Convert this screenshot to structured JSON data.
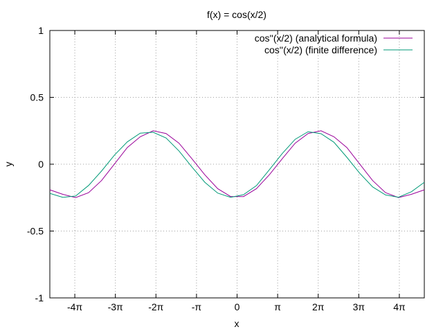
{
  "chart_data": {
    "type": "line",
    "title": "f(x) = cos(x/2)",
    "xlabel": "x",
    "ylabel": "y",
    "xlim": [
      -14.5,
      14.5
    ],
    "ylim": [
      -1,
      1
    ],
    "grid": true,
    "legend_position": "top-right",
    "x_ticks": [
      {
        "value": -12.566,
        "label": "-4π"
      },
      {
        "value": -9.425,
        "label": "-3π"
      },
      {
        "value": -6.283,
        "label": "-2π"
      },
      {
        "value": -3.142,
        "label": "-π"
      },
      {
        "value": 0,
        "label": "0"
      },
      {
        "value": 3.142,
        "label": "π"
      },
      {
        "value": 6.283,
        "label": "2π"
      },
      {
        "value": 9.425,
        "label": "3π"
      },
      {
        "value": 12.566,
        "label": "4π"
      }
    ],
    "y_ticks": [
      {
        "value": -1,
        "label": "-1"
      },
      {
        "value": -0.5,
        "label": "-0.5"
      },
      {
        "value": 0,
        "label": "0"
      },
      {
        "value": 0.5,
        "label": "0.5"
      },
      {
        "value": 1,
        "label": "1"
      }
    ],
    "x": [
      -14.5,
      -13.5,
      -12.5,
      -11.5,
      -10.5,
      -9.5,
      -8.5,
      -7.5,
      -6.5,
      -5.5,
      -4.5,
      -3.5,
      -2.5,
      -1.5,
      -0.5,
      0.5,
      1.5,
      2.5,
      3.5,
      4.5,
      5.5,
      6.5,
      7.5,
      8.5,
      9.5,
      10.5,
      11.5,
      12.5,
      13.5,
      14.5
    ],
    "series": [
      {
        "name": "cos''(x/2) (analytical formula)",
        "color": "#990099",
        "values": [
          -0.1919,
          -0.2252,
          -0.2499,
          -0.2129,
          -0.1227,
          0.001,
          0.1245,
          0.2052,
          0.25,
          0.2295,
          0.1571,
          0.041,
          -0.0792,
          -0.183,
          -0.2422,
          -0.2422,
          -0.183,
          -0.0792,
          0.041,
          0.1571,
          0.2295,
          0.25,
          0.2052,
          0.1245,
          0.001,
          -0.1227,
          -0.2129,
          -0.2499,
          -0.2252,
          -0.1919
        ]
      },
      {
        "name": "cos''(x/2) (finite difference)",
        "color": "#009977",
        "values": [
          -0.218,
          -0.248,
          -0.238,
          -0.159,
          -0.052,
          0.068,
          0.167,
          0.232,
          0.239,
          0.196,
          0.099,
          -0.02,
          -0.135,
          -0.216,
          -0.248,
          -0.228,
          -0.16,
          -0.042,
          0.08,
          0.186,
          0.243,
          0.228,
          0.164,
          0.052,
          -0.068,
          -0.17,
          -0.23,
          -0.247,
          -0.206,
          -0.135
        ]
      }
    ]
  }
}
